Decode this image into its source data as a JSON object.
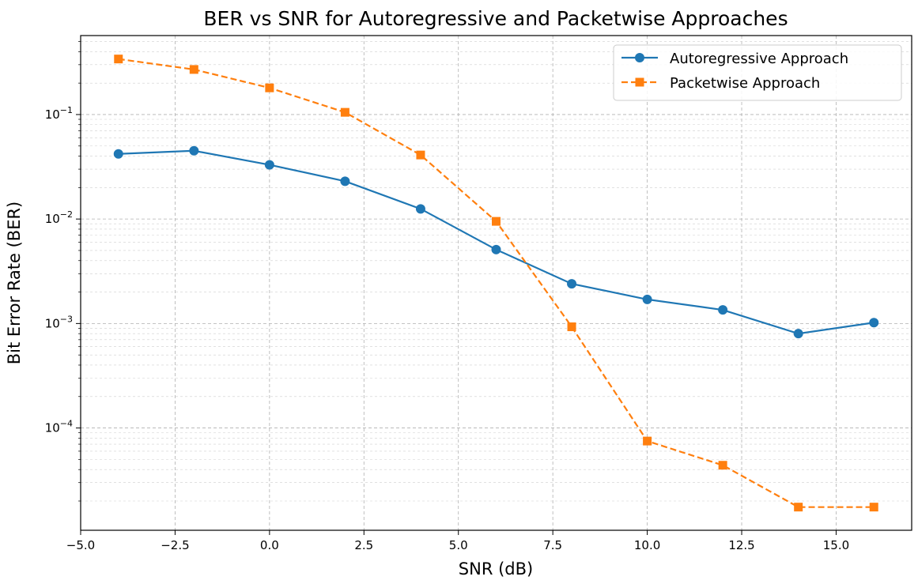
{
  "chart_data": {
    "type": "line",
    "title": "BER vs SNR for Autoregressive and Packetwise Approaches",
    "xlabel": "SNR (dB)",
    "ylabel": "Bit Error Rate (BER)",
    "x_scale": "linear",
    "y_scale": "log",
    "xlim": [
      -5.0,
      17.0
    ],
    "ylim": [
      1.05e-05,
      0.57
    ],
    "x_ticks": [
      -5.0,
      -2.5,
      0.0,
      2.5,
      5.0,
      7.5,
      10.0,
      12.5,
      15.0
    ],
    "x_tick_labels": [
      "−5.0",
      "−2.5",
      "0.0",
      "2.5",
      "5.0",
      "7.5",
      "10.0",
      "12.5",
      "15.0"
    ],
    "y_ticks": [
      0.0001,
      0.001,
      0.01,
      0.1
    ],
    "y_tick_labels": [
      {
        "base": "10",
        "exp": "−4"
      },
      {
        "base": "10",
        "exp": "−3"
      },
      {
        "base": "10",
        "exp": "−2"
      },
      {
        "base": "10",
        "exp": "−1"
      }
    ],
    "grid": true,
    "legend_position": "top-right",
    "x": [
      -4,
      -2,
      0,
      2,
      4,
      6,
      8,
      10,
      12,
      14,
      16
    ],
    "series": [
      {
        "name": "Autoregressive Approach",
        "color": "#1f77b4",
        "marker": "circle",
        "linestyle": "solid",
        "values": [
          0.042,
          0.045,
          0.033,
          0.023,
          0.0125,
          0.0051,
          0.0024,
          0.0017,
          0.00135,
          0.0008,
          0.00102
        ]
      },
      {
        "name": "Packetwise Approach",
        "color": "#ff7f0e",
        "marker": "square",
        "linestyle": "dashed",
        "values": [
          0.34,
          0.27,
          0.18,
          0.105,
          0.041,
          0.0095,
          0.00093,
          7.5e-05,
          4.4e-05,
          1.75e-05,
          1.75e-05
        ]
      }
    ]
  }
}
